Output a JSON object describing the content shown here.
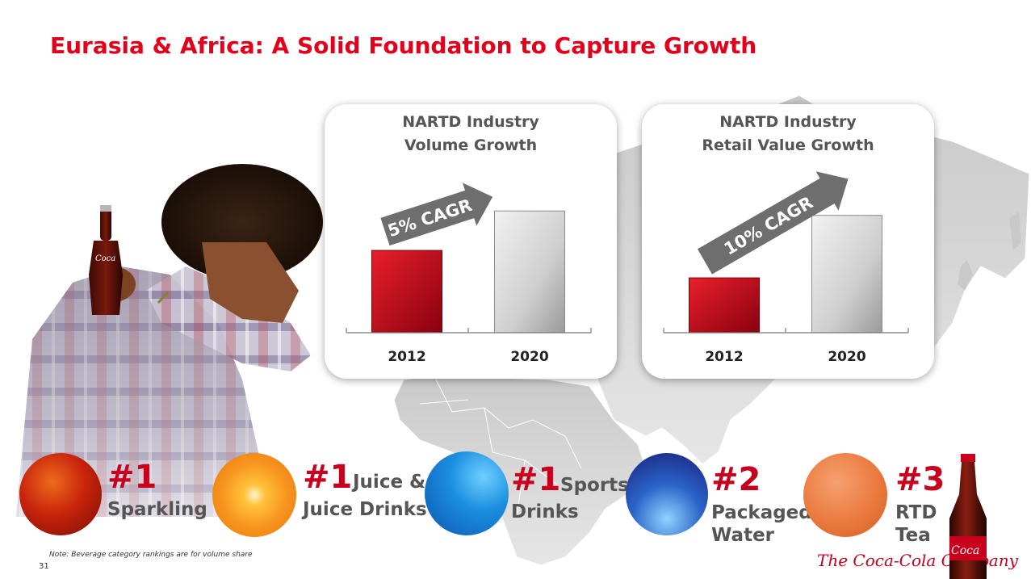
{
  "slide": {
    "title": "Eurasia & Africa: A Solid Foundation to Capture Growth",
    "note": "Note: Beverage category rankings are for volume share",
    "page_number": "31",
    "brand": "The Coca-Cola Company"
  },
  "colors": {
    "accent_red": "#e2001a",
    "bar_2012": "#c8001e",
    "bar_2020": "#d8d8d8",
    "arrow": "#6e6e6e"
  },
  "chart_data": [
    {
      "type": "bar",
      "title": "NARTD Industry Volume Growth",
      "title_lines": [
        "NARTD Industry",
        "Volume Growth"
      ],
      "categories": [
        "2012",
        "2020"
      ],
      "values": [
        1.0,
        1.48
      ],
      "annotation": "5% CAGR",
      "ylim": [
        0,
        1.6
      ],
      "grid": false
    },
    {
      "type": "bar",
      "title": "NARTD Industry Retail Value Growth",
      "title_lines": [
        "NARTD Industry",
        "Retail Value Growth"
      ],
      "categories": [
        "2012",
        "2020"
      ],
      "values": [
        1.0,
        2.14
      ],
      "annotation": "10% CAGR",
      "ylim": [
        0,
        2.4
      ],
      "grid": false
    }
  ],
  "rankings": [
    {
      "rank": "#1",
      "label_lines": [
        "Sparkling"
      ],
      "icon": "sparkling-drink-icon"
    },
    {
      "rank": "#1",
      "label_inline": "Juice &",
      "label_lines": [
        "Juice Drinks"
      ],
      "icon": "orange-slice-icon"
    },
    {
      "rank": "#1",
      "label_inline": "Sports",
      "label_lines": [
        "Drinks"
      ],
      "icon": "sports-drink-icon"
    },
    {
      "rank": "#2",
      "label_lines": [
        "Packaged",
        "Water"
      ],
      "icon": "water-drops-icon"
    },
    {
      "rank": "#3",
      "label_lines": [
        "RTD",
        "Tea"
      ],
      "icon": "tea-icon"
    }
  ]
}
